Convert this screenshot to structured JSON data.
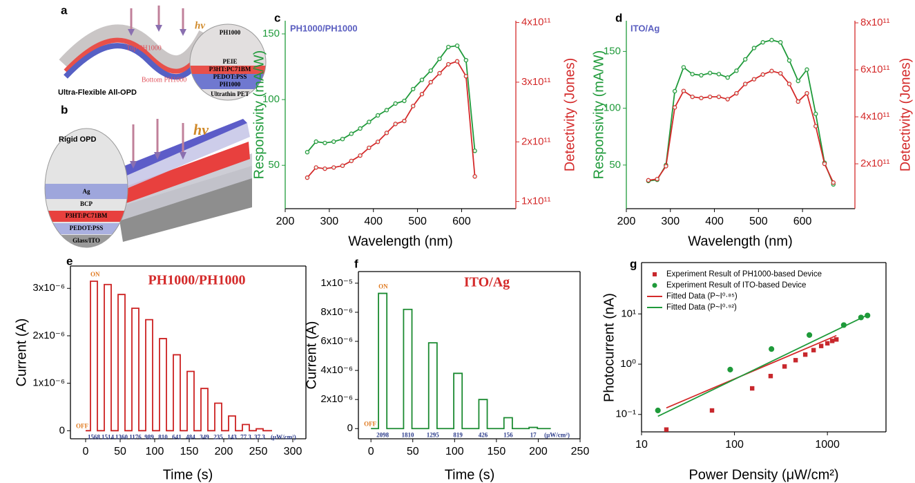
{
  "figure_a": {
    "label": "a",
    "light": "hν",
    "top_layer": "Top PH1000",
    "bottom_layer": "Bottom PH1000",
    "caption": "Ultra-Flexible All-OPD",
    "stack": [
      "PH1000",
      "PEIE",
      "P3HT:PC71BM",
      "PEDOT:PSS",
      "PH1000",
      "Ultrathin PET"
    ]
  },
  "figure_b": {
    "label": "b",
    "caption": "Rigid OPD",
    "light": "hν",
    "stack": [
      "Ag",
      "BCP",
      "P3HT:PC71BM",
      "PEDOT:PSS",
      "Glass/ITO"
    ]
  },
  "chart_data": [
    {
      "type": "line",
      "label": "c",
      "title": "PH1000/PH1000",
      "x": [
        250,
        270,
        290,
        310,
        330,
        350,
        370,
        390,
        410,
        430,
        450,
        470,
        490,
        510,
        530,
        550,
        570,
        590,
        610,
        630
      ],
      "xlim": [
        200,
        723
      ],
      "xticks": [
        200,
        300,
        400,
        500,
        600
      ],
      "ylim": [
        17,
        160
      ],
      "yticks": [
        50,
        100,
        150
      ],
      "y2lim": [
        88000000000.0,
        403000000000.0
      ],
      "y2ticks": [
        {
          "value": 100000000000.0,
          "label": "1x10¹¹"
        },
        {
          "value": 200000000000.0,
          "label": "2x10¹¹"
        },
        {
          "value": 300000000000.0,
          "label": "3x10¹¹"
        },
        {
          "value": 400000000000.0,
          "label": "4x10¹¹"
        }
      ],
      "xlabel": "Wavelength (nm)",
      "ylabel": "Responsivity (mA/W)",
      "y2label": "Detectivity (Jones)",
      "series": [
        {
          "color": "#1f9a3a",
          "style": "line+circle",
          "values": [
            60,
            68,
            67,
            68,
            70,
            74,
            78,
            83,
            88,
            92,
            97,
            99,
            108,
            115,
            122,
            131,
            140,
            141,
            130,
            61
          ]
        },
        {
          "color": "#d42a2a",
          "style": "line+circle",
          "axis": "y2",
          "values": [
            140000000000.0,
            157000000000.0,
            155000000000.0,
            157000000000.0,
            160000000000.0,
            168000000000.0,
            177000000000.0,
            190000000000.0,
            200000000000.0,
            215000000000.0,
            230000000000.0,
            235000000000.0,
            260000000000.0,
            280000000000.0,
            300000000000.0,
            315000000000.0,
            330000000000.0,
            335000000000.0,
            310000000000.0,
            142000000000.0
          ]
        }
      ]
    },
    {
      "type": "line",
      "label": "d",
      "title": "ITO/Ag",
      "x": [
        250,
        270,
        290,
        310,
        330,
        350,
        370,
        390,
        410,
        430,
        450,
        470,
        490,
        510,
        530,
        550,
        570,
        590,
        610,
        630,
        650,
        670
      ],
      "xlim": [
        200,
        719
      ],
      "xticks": [
        200,
        300,
        400,
        500,
        600
      ],
      "ylim": [
        11.6,
        177
      ],
      "yticks": [
        50,
        100,
        150
      ],
      "y2lim": [
        9000000000.0,
        809000000000.0
      ],
      "y2ticks": [
        {
          "value": 200000000000.0,
          "label": "2x10¹¹"
        },
        {
          "value": 400000000000.0,
          "label": "4x10¹¹"
        },
        {
          "value": 600000000000.0,
          "label": "6x10¹¹"
        },
        {
          "value": 800000000000.0,
          "label": "8x10¹¹"
        }
      ],
      "xlabel": "Wavelength (nm)",
      "ylabel": "Responsivity (mA/W)",
      "y2label": "Detectivity (Jones)",
      "series": [
        {
          "color": "#1f9a3a",
          "style": "line+circle",
          "values": [
            36,
            37,
            50,
            115,
            136,
            130,
            129,
            131,
            130,
            127,
            133,
            143,
            153,
            158,
            160,
            158,
            142,
            124,
            134,
            95,
            52,
            33
          ]
        },
        {
          "color": "#d42a2a",
          "style": "line+circle",
          "axis": "y2",
          "values": [
            130000000000.0,
            135000000000.0,
            190000000000.0,
            440000000000.0,
            510000000000.0,
            485000000000.0,
            480000000000.0,
            485000000000.0,
            485000000000.0,
            475000000000.0,
            500000000000.0,
            540000000000.0,
            560000000000.0,
            580000000000.0,
            595000000000.0,
            585000000000.0,
            540000000000.0,
            465000000000.0,
            500000000000.0,
            360000000000.0,
            200000000000.0,
            120000000000.0
          ]
        }
      ]
    },
    {
      "type": "line",
      "label": "e",
      "title": "PH1000/PH1000",
      "x": [
        0,
        7,
        7,
        17,
        17,
        27,
        27,
        37,
        37,
        47,
        47,
        57,
        57,
        67,
        67,
        77,
        77,
        87,
        87,
        97,
        97,
        107,
        107,
        117,
        117,
        127,
        127,
        137,
        137,
        147,
        147,
        157,
        157,
        167,
        167,
        177,
        177,
        187,
        187,
        197,
        197,
        207,
        207,
        217,
        217,
        227,
        227,
        237,
        237,
        247,
        247,
        257,
        257,
        270
      ],
      "xlim": [
        -22,
        319
      ],
      "xticks": [
        0,
        50,
        100,
        150,
        200,
        250,
        300
      ],
      "ylim": [
        -1.7e-07,
        3.47e-06
      ],
      "yticks": [
        0,
        {
          "value": 1e-06,
          "label": "1x10⁻⁶"
        },
        {
          "value": 2e-06,
          "label": "2x10⁻⁶"
        },
        {
          "value": 3e-06,
          "label": "3x10⁻⁶"
        }
      ],
      "xlabel": "Time (s)",
      "ylabel": "Current (A)",
      "on_label": "ON",
      "off_label": "OFF",
      "power_labels": [
        "1568",
        "1514",
        "1360",
        "1176",
        "989",
        "810",
        "641",
        "484",
        "349",
        "235",
        "143",
        "77.3",
        "37.3"
      ],
      "power_unit": "(μW/cm²)",
      "series": [
        {
          "color": "#cc2020",
          "style": "line",
          "values": [
            0,
            0,
            3.15e-06,
            3.15e-06,
            0,
            0,
            3.08e-06,
            3.08e-06,
            0,
            0,
            2.87e-06,
            2.87e-06,
            0,
            0,
            2.58e-06,
            2.58e-06,
            0,
            0,
            2.34e-06,
            2.34e-06,
            0,
            0,
            1.94e-06,
            1.94e-06,
            0,
            0,
            1.6e-06,
            1.6e-06,
            0,
            0,
            1.25e-06,
            1.25e-06,
            0,
            0,
            8.9e-07,
            8.9e-07,
            0,
            0,
            5.8e-07,
            5.8e-07,
            0,
            0,
            3.1e-07,
            3.1e-07,
            0,
            0,
            1.3e-07,
            1.3e-07,
            0,
            0,
            4e-08,
            4e-08,
            0,
            0
          ]
        }
      ]
    },
    {
      "type": "line",
      "label": "f",
      "title": "ITO/Ag",
      "x": [
        0,
        9,
        9,
        19,
        19,
        39,
        39,
        49,
        49,
        69,
        69,
        79,
        79,
        99,
        99,
        109,
        109,
        129,
        129,
        139,
        139,
        159,
        159,
        169,
        169,
        189,
        189,
        199,
        199,
        215
      ],
      "xlim": [
        -15,
        250
      ],
      "xticks": [
        0,
        50,
        100,
        150,
        200,
        250
      ],
      "ylim": [
        -7e-07,
        1.08e-05
      ],
      "yticks": [
        0,
        {
          "value": 2e-06,
          "label": "2x10⁻⁶"
        },
        {
          "value": 4e-06,
          "label": "4x10⁻⁶"
        },
        {
          "value": 6e-06,
          "label": "6x10⁻⁶"
        },
        {
          "value": 8e-06,
          "label": "8x10⁻⁶"
        },
        {
          "value": 1e-05,
          "label": "1x10⁻⁵"
        }
      ],
      "xlabel": "Time (s)",
      "ylabel": "Current (A)",
      "on_label": "ON",
      "off_label": "OFF",
      "power_labels": [
        "2098",
        "1810",
        "1295",
        "819",
        "426",
        "156",
        "17"
      ],
      "power_unit": "(μW/cm²)",
      "series": [
        {
          "color": "#1a8a30",
          "style": "line",
          "values": [
            0,
            0,
            9.3e-06,
            9.3e-06,
            0,
            0,
            8.2e-06,
            8.2e-06,
            0,
            0,
            5.9e-06,
            5.9e-06,
            0,
            0,
            3.8e-06,
            3.8e-06,
            0,
            0,
            2e-06,
            2e-06,
            0,
            0,
            7.5e-07,
            7.5e-07,
            0,
            0,
            8e-08,
            8e-08,
            0,
            0
          ]
        }
      ]
    },
    {
      "type": "scatter",
      "label": "g",
      "xscale": "log",
      "yscale": "log",
      "xlim": [
        10,
        4270
      ],
      "xticks": [
        10,
        100,
        1000
      ],
      "ylim": [
        0.045,
        105
      ],
      "yticks": [
        {
          "value": 0.1,
          "label": "10⁻¹"
        },
        {
          "value": 1,
          "label": "10⁰"
        },
        {
          "value": 10,
          "label": "10¹"
        }
      ],
      "xlabel": "Power Density (μW/cm²)",
      "ylabel": "Photocurrent (nA)",
      "legend": "top-left",
      "series": [
        {
          "name": "Experiment Result of PH1000-based Device",
          "color": "#c8282d",
          "style": "square",
          "x": [
            18.5,
            57.3,
            155,
            245,
            346,
            455,
            578,
            710,
            857,
            1000,
            1127,
            1250
          ],
          "values": [
            0.05,
            0.12,
            0.33,
            0.58,
            0.9,
            1.2,
            1.55,
            1.9,
            2.3,
            2.6,
            2.9,
            3.1
          ]
        },
        {
          "name": "Experiment Result of ITO-based Device",
          "color": "#1f9a3a",
          "style": "circle",
          "x": [
            15,
            90,
            250,
            640,
            1500,
            2300,
            2700
          ],
          "values": [
            0.12,
            0.78,
            2.0,
            3.8,
            6.0,
            8.5,
            9.3
          ]
        },
        {
          "name": "Fitted Data (P~I⁰·⁸⁵)",
          "color": "#d42a2a",
          "style": "line",
          "x": [
            18.5,
            1250
          ],
          "values": [
            0.135,
            3.7
          ]
        },
        {
          "name": "Fitted Data (P~I⁰·⁹²)",
          "color": "#1f9a3a",
          "style": "line",
          "x": [
            15,
            2700
          ],
          "values": [
            0.092,
            9.5
          ]
        }
      ]
    }
  ]
}
